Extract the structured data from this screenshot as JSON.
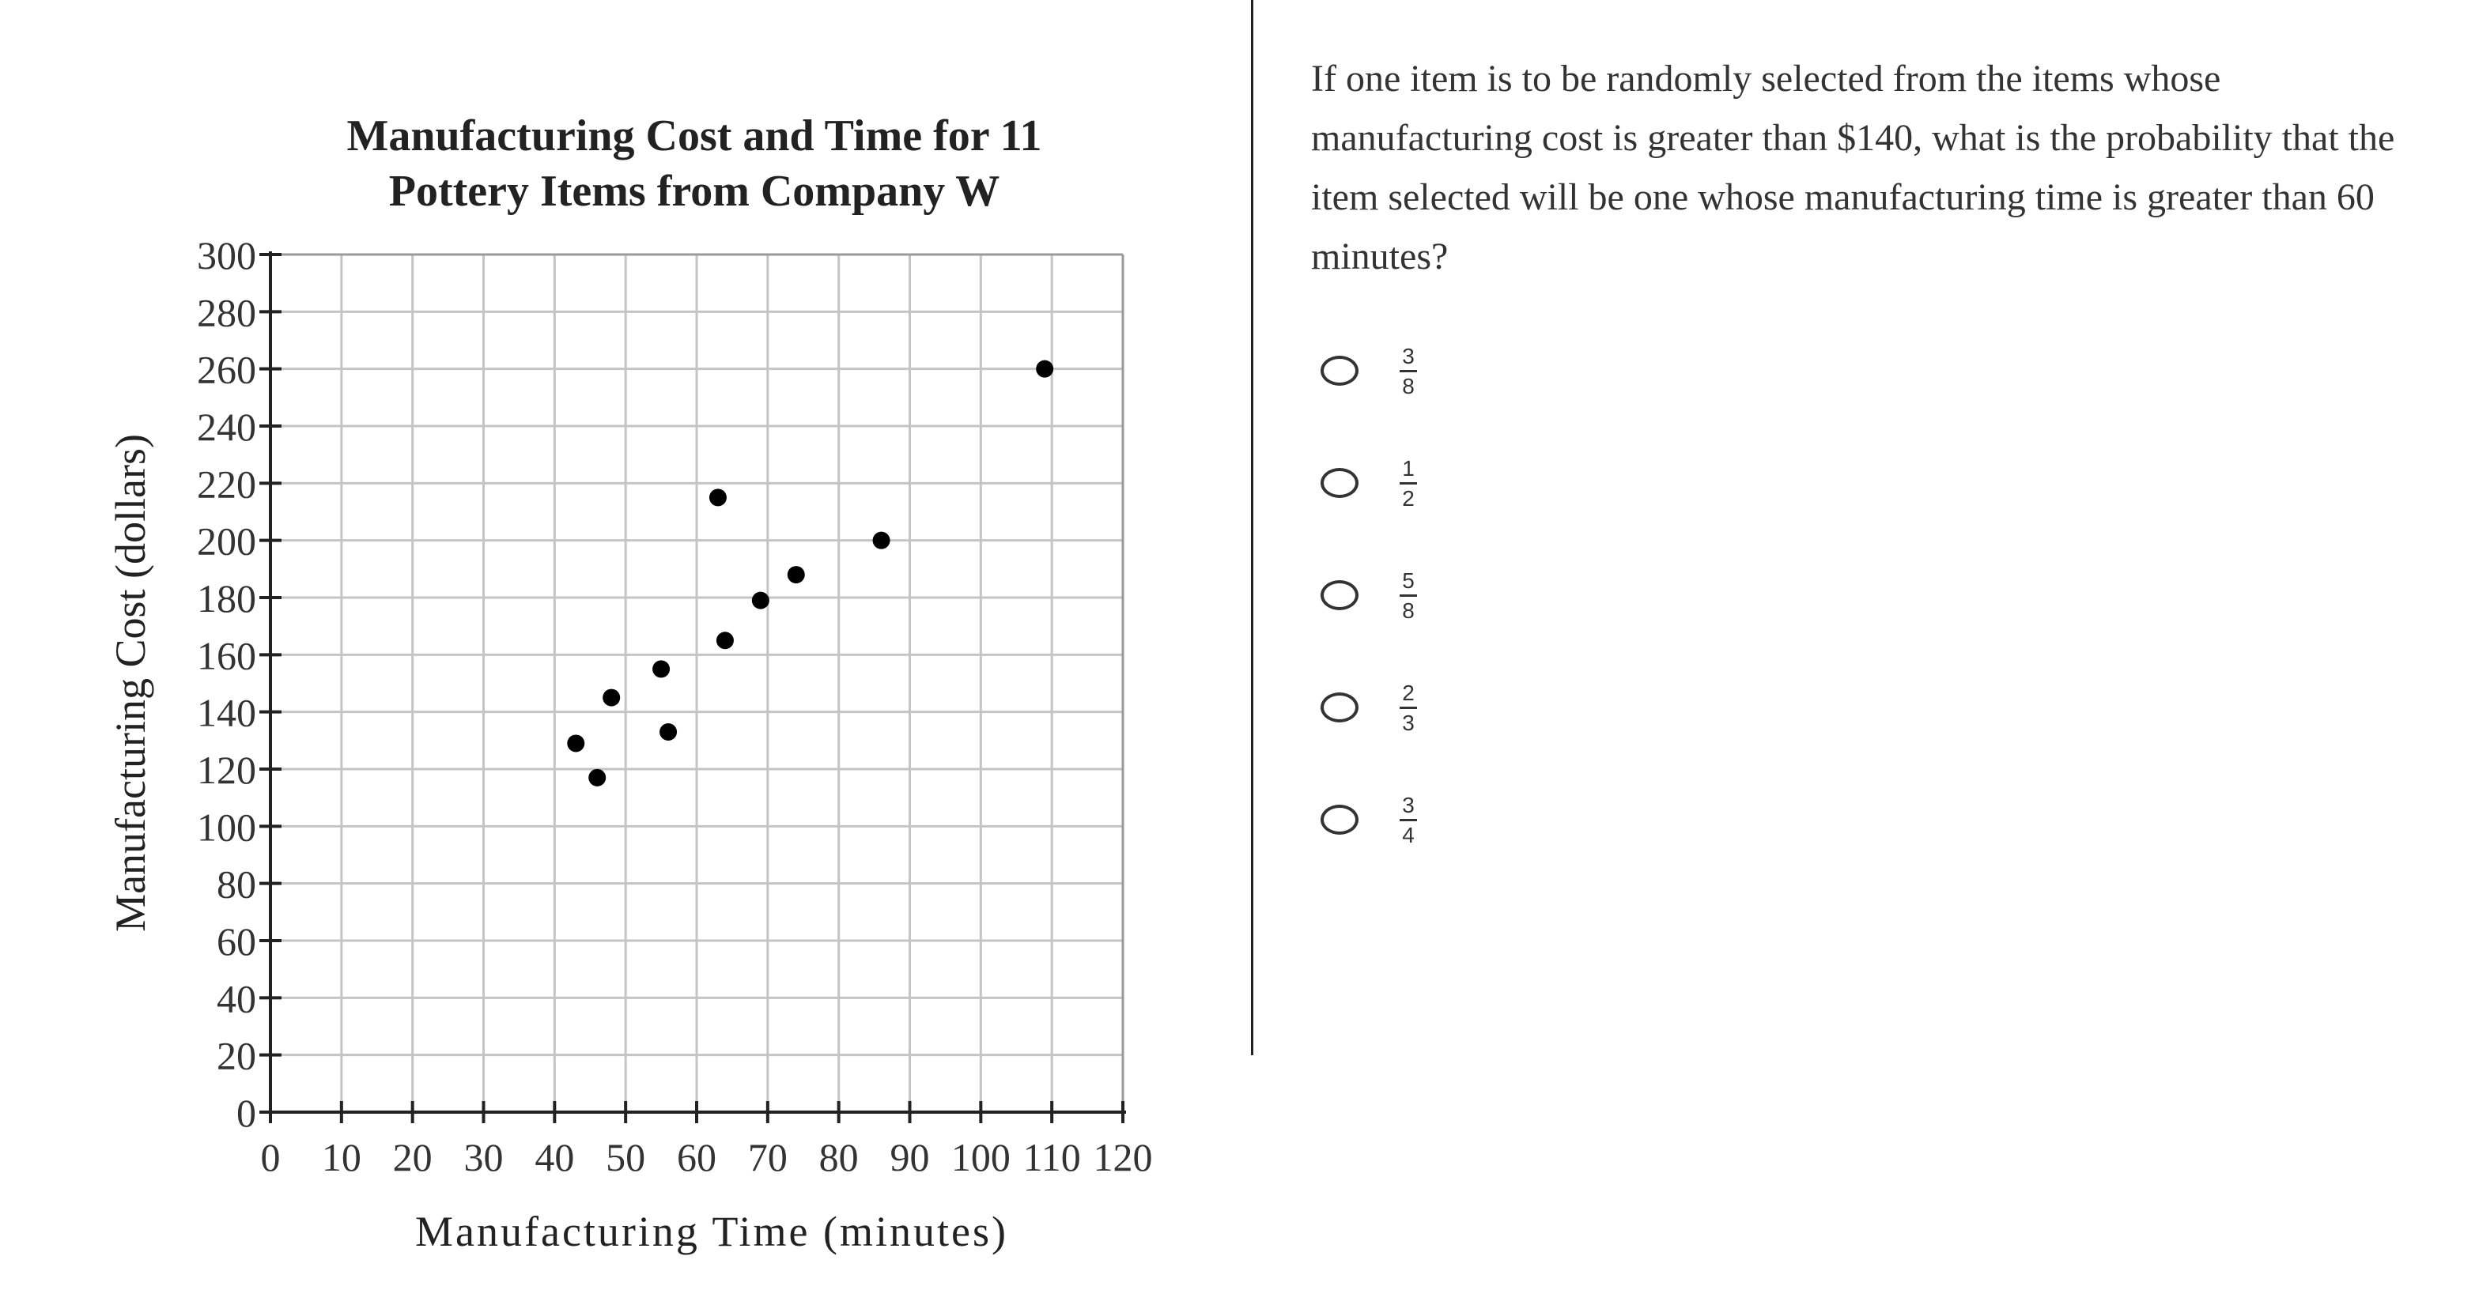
{
  "chart_data": {
    "type": "scatter",
    "title": [
      "Manufacturing Cost and Time for 11",
      "Pottery Items from Company W"
    ],
    "xlabel": "Manufacturing Time (minutes)",
    "ylabel": "Manufacturing Cost (dollars)",
    "xlim": [
      0,
      120
    ],
    "ylim": [
      0,
      300
    ],
    "x_ticks": [
      "0",
      "10",
      "20",
      "30",
      "40",
      "50",
      "60",
      "70",
      "80",
      "90",
      "100",
      "110",
      "120"
    ],
    "y_ticks": [
      "0",
      "20",
      "40",
      "60",
      "80",
      "100",
      "120",
      "140",
      "160",
      "180",
      "200",
      "220",
      "240",
      "260",
      "280",
      "300"
    ],
    "grid": true,
    "points": [
      {
        "x": 43,
        "y": 129
      },
      {
        "x": 46,
        "y": 117
      },
      {
        "x": 48,
        "y": 145
      },
      {
        "x": 55,
        "y": 155
      },
      {
        "x": 56,
        "y": 133
      },
      {
        "x": 63,
        "y": 215
      },
      {
        "x": 64,
        "y": 165
      },
      {
        "x": 69,
        "y": 179
      },
      {
        "x": 74,
        "y": 188
      },
      {
        "x": 86,
        "y": 200
      },
      {
        "x": 109,
        "y": 260
      }
    ]
  },
  "question": {
    "text": "If one item is to be randomly selected from the items whose manufacturing cost is greater than $140, what is the probability that the item selected will be one whose manufacturing time is greater than 60 minutes?",
    "choices": [
      {
        "numerator": "3",
        "denominator": "8"
      },
      {
        "numerator": "1",
        "denominator": "2"
      },
      {
        "numerator": "5",
        "denominator": "8"
      },
      {
        "numerator": "2",
        "denominator": "3"
      },
      {
        "numerator": "3",
        "denominator": "4"
      }
    ]
  }
}
